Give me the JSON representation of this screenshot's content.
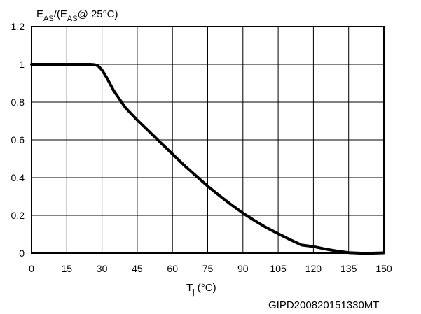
{
  "chart_data": {
    "type": "line",
    "title": "",
    "ylabel": {
      "main1": "E",
      "sub1": "AS",
      "main2": "/(E",
      "sub2": "AS",
      "main3": "@ 25°C)"
    },
    "xlabel": {
      "main": "T",
      "sub": "j",
      "rest": " (°C)"
    },
    "xlim": [
      0,
      150
    ],
    "ylim": [
      0,
      1.2
    ],
    "xticks": [
      0,
      15,
      30,
      45,
      60,
      75,
      90,
      105,
      120,
      135,
      150
    ],
    "xtick_labels": [
      "0",
      "15",
      "30",
      "45",
      "60",
      "75",
      "90",
      "105",
      "120",
      "135",
      "150"
    ],
    "yticks": [
      0,
      0.2,
      0.4,
      0.6,
      0.8,
      1.0,
      1.2
    ],
    "ytick_labels": [
      "0",
      "0.2",
      "0.4",
      "0.6",
      "0.8",
      "1",
      "1.2"
    ],
    "grid": true,
    "series": [
      {
        "color": "#000000",
        "x": [
          0,
          10,
          20,
          25,
          27,
          28.5,
          30,
          32,
          35,
          40,
          45,
          50,
          55,
          60,
          65,
          70,
          75,
          80,
          85,
          90,
          95,
          100,
          105,
          110,
          115,
          120,
          125,
          130,
          135,
          140,
          145,
          150
        ],
        "y": [
          1.0,
          1.0,
          1.0,
          1.0,
          0.998,
          0.99,
          0.97,
          0.93,
          0.86,
          0.77,
          0.705,
          0.645,
          0.585,
          0.525,
          0.465,
          0.41,
          0.355,
          0.305,
          0.257,
          0.212,
          0.172,
          0.135,
          0.103,
          0.072,
          0.043,
          0.035,
          0.022,
          0.011,
          0.003,
          0.0,
          0.0,
          0.002
        ]
      }
    ]
  },
  "figure_code": "GIPD200820151330MT"
}
